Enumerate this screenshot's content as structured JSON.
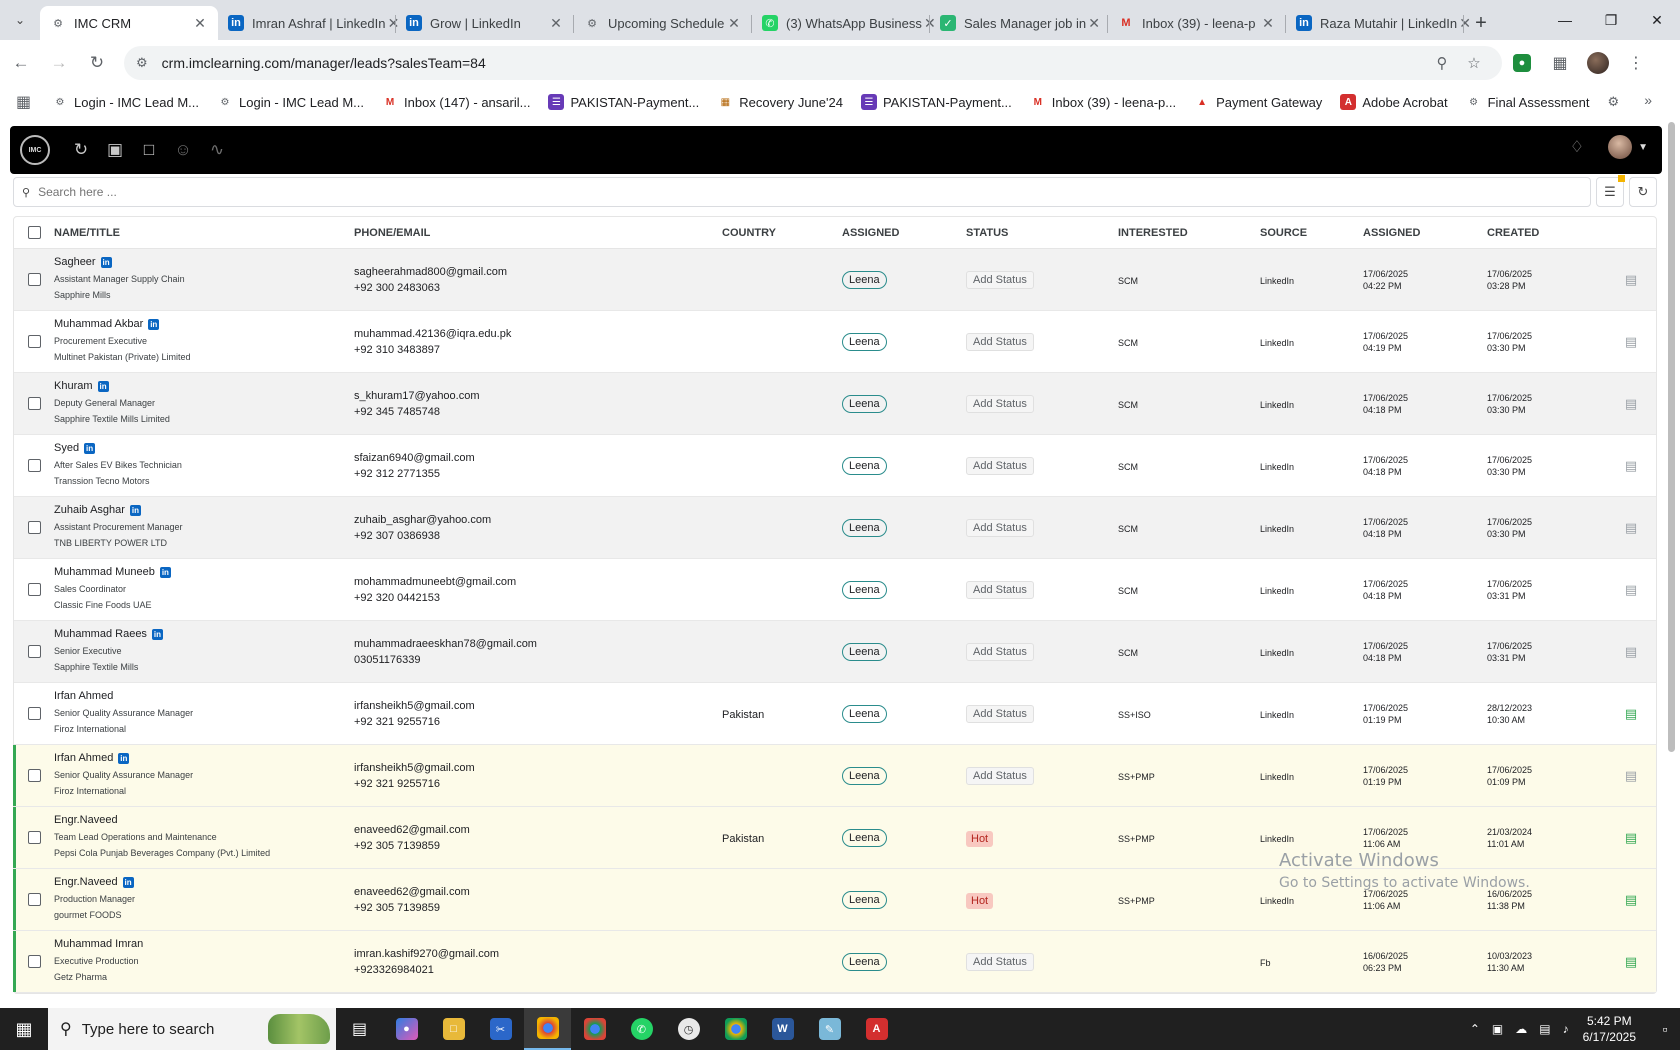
{
  "browser": {
    "tabs": [
      {
        "title": "IMC CRM",
        "icon": "imc-icon",
        "active": true
      },
      {
        "title": "Imran Ashraf | LinkedIn",
        "icon": "linkedin-icon"
      },
      {
        "title": "Grow | LinkedIn",
        "icon": "linkedin-icon"
      },
      {
        "title": "Upcoming Schedule",
        "icon": "imc-icon"
      },
      {
        "title": "(3) WhatsApp Business",
        "icon": "whatsapp-icon"
      },
      {
        "title": "Sales Manager job in",
        "icon": "job-icon"
      },
      {
        "title": "Inbox (39) - leena-p",
        "icon": "gmail-icon"
      },
      {
        "title": "Raza Mutahir | LinkedIn",
        "icon": "linkedin-icon"
      }
    ],
    "url": "crm.imclearning.com/manager/leads?salesTeam=84",
    "bookmarks": [
      {
        "label": "Login - IMC Lead M...",
        "icon": "imc-icon"
      },
      {
        "label": "Login - IMC Lead M...",
        "icon": "imc-icon"
      },
      {
        "label": "Inbox (147) - ansaril...",
        "icon": "gmail-icon"
      },
      {
        "label": "PAKISTAN-Payment...",
        "icon": "forms-icon"
      },
      {
        "label": "Recovery June'24",
        "icon": "sheets-icon"
      },
      {
        "label": "PAKISTAN-Payment...",
        "icon": "forms-icon"
      },
      {
        "label": "Inbox (39) - leena-p...",
        "icon": "gmail-icon"
      },
      {
        "label": "Payment Gateway",
        "icon": "gateway-icon"
      },
      {
        "label": "Adobe Acrobat",
        "icon": "acrobat-icon"
      },
      {
        "label": "Final Assessment",
        "icon": "imc-icon"
      }
    ]
  },
  "app": {
    "logo_text": "IMC",
    "search_placeholder": "Search here ...",
    "columns": [
      "NAME/TITLE",
      "PHONE/EMAIL",
      "COUNTRY",
      "ASSIGNED",
      "STATUS",
      "INTERESTED",
      "SOURCE",
      "ASSIGNED",
      "CREATED"
    ],
    "leads": [
      {
        "name": "Sagheer",
        "linkedin": true,
        "title": "Assistant Manager Supply Chain",
        "company": "Sapphire Mills",
        "email": "sagheerahmad800@gmail.com",
        "phone": "+92 300 2483063",
        "country": "",
        "assigned": "Leena",
        "status": "Add Status",
        "interested": "SCM",
        "source": "LinkedIn",
        "assigned_date": "17/06/2025",
        "assigned_time": "04:22 PM",
        "created_date": "17/06/2025",
        "created_time": "03:28 PM",
        "bg": "gray",
        "doc": "gray"
      },
      {
        "name": "Muhammad Akbar",
        "linkedin": true,
        "title": "Procurement Executive",
        "company": "Multinet Pakistan (Private) Limited",
        "email": "muhammad.42136@iqra.edu.pk",
        "phone": "+92 310 3483897",
        "country": "",
        "assigned": "Leena",
        "status": "Add Status",
        "interested": "SCM",
        "source": "LinkedIn",
        "assigned_date": "17/06/2025",
        "assigned_time": "04:19 PM",
        "created_date": "17/06/2025",
        "created_time": "03:30 PM",
        "bg": "white",
        "doc": "gray"
      },
      {
        "name": "Khuram",
        "linkedin": true,
        "title": "Deputy General Manager",
        "company": "Sapphire Textile Mills Limited",
        "email": "s_khuram17@yahoo.com",
        "phone": "+92 345 7485748",
        "country": "",
        "assigned": "Leena",
        "status": "Add Status",
        "interested": "SCM",
        "source": "LinkedIn",
        "assigned_date": "17/06/2025",
        "assigned_time": "04:18 PM",
        "created_date": "17/06/2025",
        "created_time": "03:30 PM",
        "bg": "gray",
        "doc": "gray"
      },
      {
        "name": "Syed",
        "linkedin": true,
        "title": "After Sales EV Bikes Technician",
        "company": "Transsion Tecno Motors",
        "email": "sfaizan6940@gmail.com",
        "phone": "+92 312 2771355",
        "country": "",
        "assigned": "Leena",
        "status": "Add Status",
        "interested": "SCM",
        "source": "LinkedIn",
        "assigned_date": "17/06/2025",
        "assigned_time": "04:18 PM",
        "created_date": "17/06/2025",
        "created_time": "03:30 PM",
        "bg": "white",
        "doc": "gray"
      },
      {
        "name": "Zuhaib Asghar",
        "linkedin": true,
        "title": "Assistant Procurement Manager",
        "company": "TNB LIBERTY POWER LTD",
        "email": "zuhaib_asghar@yahoo.com",
        "phone": "+92 307 0386938",
        "country": "",
        "assigned": "Leena",
        "status": "Add Status",
        "interested": "SCM",
        "source": "LinkedIn",
        "assigned_date": "17/06/2025",
        "assigned_time": "04:18 PM",
        "created_date": "17/06/2025",
        "created_time": "03:30 PM",
        "bg": "gray",
        "doc": "gray"
      },
      {
        "name": "Muhammad Muneeb",
        "linkedin": true,
        "title": "Sales Coordinator",
        "company": "Classic Fine Foods UAE",
        "email": "mohammadmuneebt@gmail.com",
        "phone": "+92 320 0442153",
        "country": "",
        "assigned": "Leena",
        "status": "Add Status",
        "interested": "SCM",
        "source": "LinkedIn",
        "assigned_date": "17/06/2025",
        "assigned_time": "04:18 PM",
        "created_date": "17/06/2025",
        "created_time": "03:31 PM",
        "bg": "white",
        "doc": "gray"
      },
      {
        "name": "Muhammad Raees",
        "linkedin": true,
        "title": "Senior Executive",
        "company": "Sapphire Textile Mills",
        "email": "muhammadraeeskhan78@gmail.com",
        "phone": "03051176339",
        "country": "",
        "assigned": "Leena",
        "status": "Add Status",
        "interested": "SCM",
        "source": "LinkedIn",
        "assigned_date": "17/06/2025",
        "assigned_time": "04:18 PM",
        "created_date": "17/06/2025",
        "created_time": "03:31 PM",
        "bg": "gray",
        "doc": "gray"
      },
      {
        "name": "Irfan Ahmed",
        "linkedin": false,
        "title": "Senior Quality Assurance Manager",
        "company": "Firoz International",
        "email": "irfansheikh5@gmail.com",
        "phone": "+92 321 9255716",
        "country": "Pakistan",
        "assigned": "Leena",
        "status": "Add Status",
        "interested": "SS+ISO",
        "source": "LinkedIn",
        "assigned_date": "17/06/2025",
        "assigned_time": "01:19 PM",
        "created_date": "28/12/2023",
        "created_time": "10:30 AM",
        "bg": "white",
        "doc": "green"
      },
      {
        "name": "Irfan Ahmed",
        "linkedin": true,
        "title": "Senior Quality Assurance Manager",
        "company": "Firoz International",
        "email": "irfansheikh5@gmail.com",
        "phone": "+92 321 9255716",
        "country": "",
        "assigned": "Leena",
        "status": "Add Status",
        "interested": "SS+PMP",
        "source": "LinkedIn",
        "assigned_date": "17/06/2025",
        "assigned_time": "01:19 PM",
        "created_date": "17/06/2025",
        "created_time": "01:09 PM",
        "bg": "yellow",
        "doc": "gray"
      },
      {
        "name": "Engr.Naveed",
        "linkedin": false,
        "title": "Team Lead Operations and Maintenance",
        "company": "Pepsi Cola Punjab Beverages Company (Pvt.) Limited",
        "email": "enaveed62@gmail.com",
        "phone": "+92 305 7139859",
        "country": "Pakistan",
        "assigned": "Leena",
        "status": "Hot",
        "interested": "SS+PMP",
        "source": "LinkedIn",
        "assigned_date": "17/06/2025",
        "assigned_time": "11:06 AM",
        "created_date": "21/03/2024",
        "created_time": "11:01 AM",
        "bg": "yellow",
        "doc": "green"
      },
      {
        "name": "Engr.Naveed",
        "linkedin": true,
        "title": "Production Manager",
        "company": "gourmet FOODS",
        "email": "enaveed62@gmail.com",
        "phone": "+92 305 7139859",
        "country": "",
        "assigned": "Leena",
        "status": "Hot",
        "interested": "SS+PMP",
        "source": "LinkedIn",
        "assigned_date": "17/06/2025",
        "assigned_time": "11:06 AM",
        "created_date": "16/06/2025",
        "created_time": "11:38 PM",
        "bg": "yellow",
        "doc": "green"
      },
      {
        "name": "Muhammad Imran",
        "linkedin": false,
        "title": "Executive Production",
        "company": "Getz Pharma",
        "email": "imran.kashif9270@gmail.com",
        "phone": "+923326984021",
        "country": "",
        "assigned": "Leena",
        "status": "Add Status",
        "interested": "",
        "source": "Fb",
        "assigned_date": "16/06/2025",
        "assigned_time": "06:23 PM",
        "created_date": "10/03/2023",
        "created_time": "11:30 AM",
        "bg": "yellow",
        "doc": "green"
      }
    ]
  },
  "watermark": {
    "line1": "Activate Windows",
    "line2": "Go to Settings to activate Windows."
  },
  "taskbar": {
    "search_placeholder": "Type here to search",
    "time": "5:42 PM",
    "date": "6/17/2025"
  }
}
